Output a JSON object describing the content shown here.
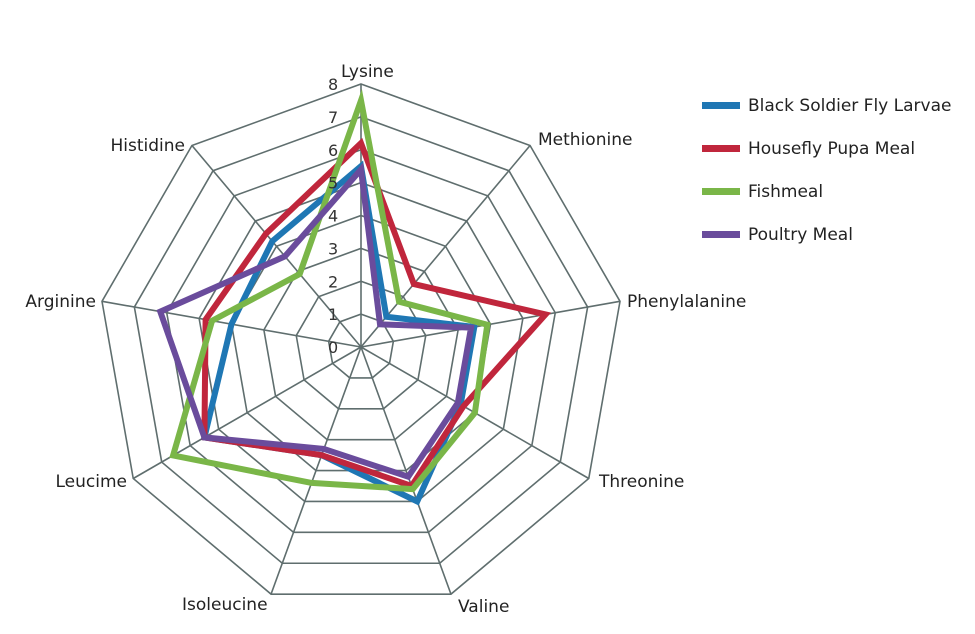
{
  "chart_data": {
    "type": "radar",
    "title": "",
    "axes": [
      "Lysine",
      "Methionine",
      "Phenylalanine",
      "Threonine",
      "Valine",
      "Isoleucine",
      "Leucime",
      "Arginine",
      "Histidine"
    ],
    "rlim": [
      0,
      8
    ],
    "ticks": [
      "0",
      "1",
      "2",
      "3",
      "4",
      "5",
      "6",
      "7",
      "8"
    ],
    "grid": true,
    "legend_position": "right",
    "series": [
      {
        "name": "Black Soldier Fly Larvae",
        "color": "#1f77b4",
        "values": [
          5.5,
          1.2,
          3.5,
          3.5,
          5.0,
          3.5,
          5.5,
          4.0,
          4.2
        ]
      },
      {
        "name": "Housefly Pupa Meal",
        "color": "#c0263c",
        "values": [
          6.2,
          2.5,
          5.7,
          3.6,
          4.5,
          3.5,
          5.5,
          4.8,
          4.5
        ]
      },
      {
        "name": "Fishmeal",
        "color": "#7ab648",
        "values": [
          7.5,
          1.8,
          3.9,
          4.0,
          4.6,
          4.4,
          6.6,
          4.6,
          2.9
        ]
      },
      {
        "name": "Poultry Meal",
        "color": "#6a4c9c",
        "values": [
          5.4,
          0.9,
          3.4,
          3.4,
          4.2,
          3.3,
          5.5,
          6.2,
          3.6
        ]
      }
    ]
  }
}
